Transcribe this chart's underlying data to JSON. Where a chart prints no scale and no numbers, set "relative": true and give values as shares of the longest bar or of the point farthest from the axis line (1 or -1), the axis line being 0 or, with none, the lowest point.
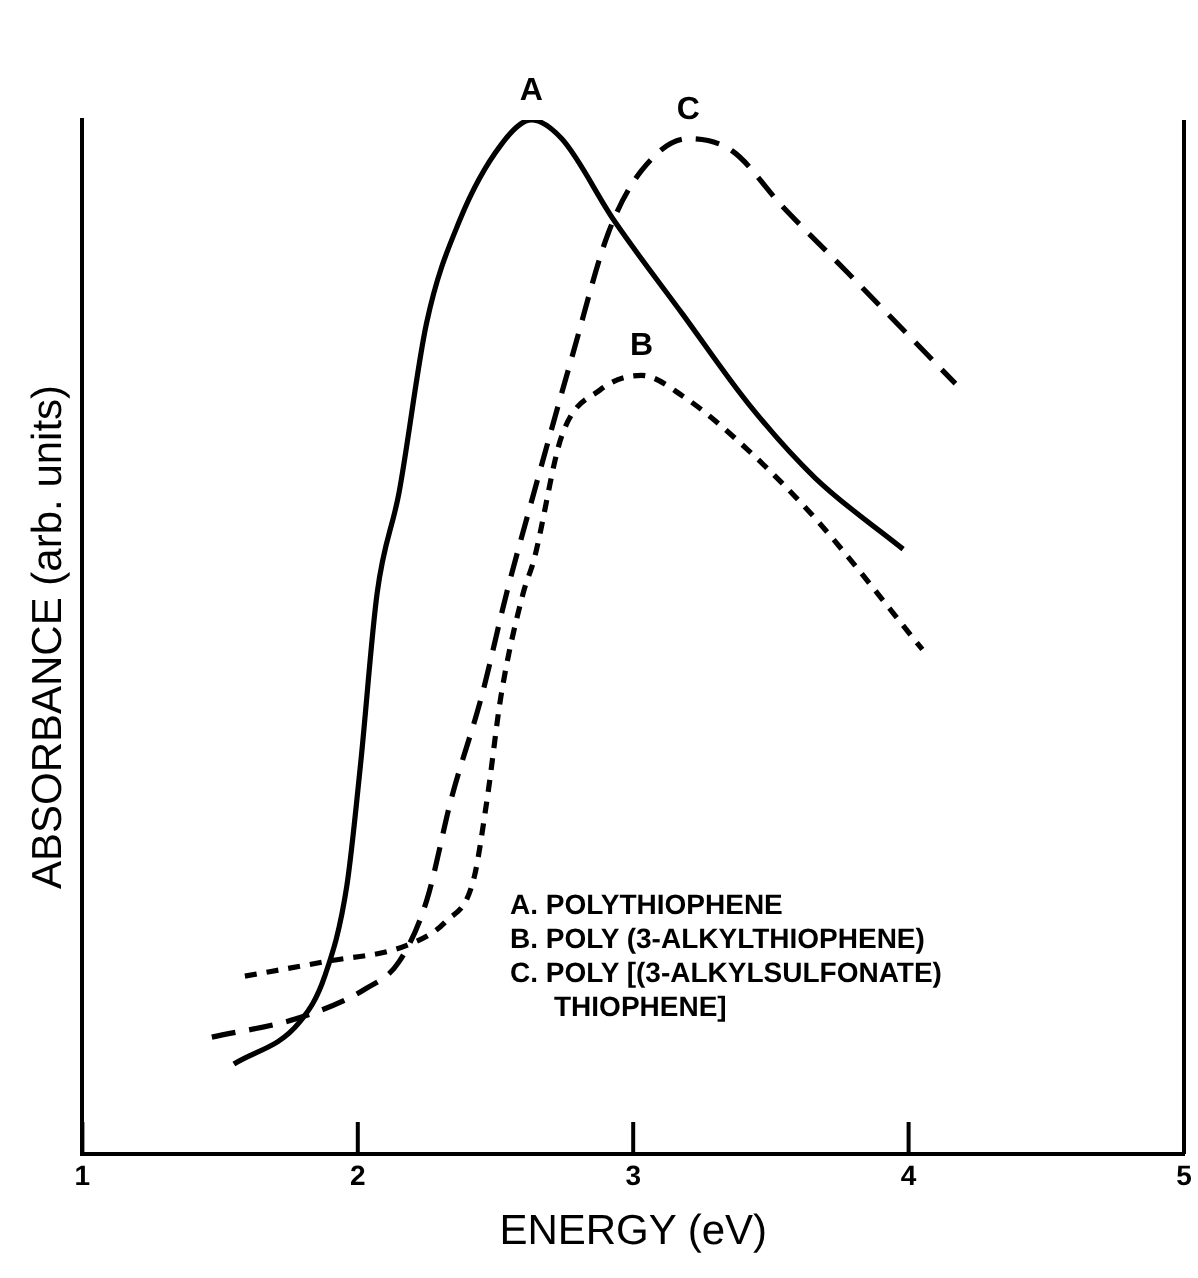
{
  "chart_data": {
    "type": "line",
    "xlabel": "ENERGY (eV)",
    "ylabel": "ABSORBANCE (arb. units)",
    "relative": true,
    "xlim": [
      1,
      5
    ],
    "xticks": [
      1,
      2,
      3,
      4,
      5
    ],
    "series": [
      {
        "name": "A",
        "color": "#000000",
        "line_style": "solid",
        "x": [
          1.55,
          1.79,
          1.88,
          1.96,
          2.01,
          2.07,
          2.15,
          2.25,
          2.37,
          2.52,
          2.63,
          2.74,
          2.93,
          3.18,
          3.42,
          3.66,
          3.98
        ],
        "values": [
          0.087,
          0.128,
          0.172,
          0.259,
          0.377,
          0.542,
          0.64,
          0.804,
          0.903,
          0.976,
          1.0,
          0.982,
          0.903,
          0.812,
          0.725,
          0.654,
          0.585
        ]
      },
      {
        "name": "B",
        "color": "#000000",
        "line_style": "dotted",
        "x": [
          1.59,
          1.88,
          2.18,
          2.32,
          2.42,
          2.47,
          2.52,
          2.6,
          2.64,
          2.74,
          2.88,
          3.03,
          3.18,
          3.42,
          3.66,
          4.05
        ],
        "values": [
          0.172,
          0.186,
          0.202,
          0.225,
          0.265,
          0.344,
          0.443,
          0.542,
          0.575,
          0.694,
          0.739,
          0.753,
          0.733,
          0.68,
          0.615,
          0.488
        ]
      },
      {
        "name": "C",
        "color": "#000000",
        "line_style": "dashed",
        "x": [
          1.47,
          1.79,
          2.03,
          2.15,
          2.25,
          2.34,
          2.45,
          2.54,
          2.64,
          2.78,
          2.91,
          3.03,
          3.2,
          3.36,
          3.54,
          3.78,
          4.17
        ],
        "values": [
          0.113,
          0.132,
          0.16,
          0.186,
          0.245,
          0.344,
          0.443,
          0.542,
          0.64,
          0.773,
          0.891,
          0.951,
          0.982,
          0.97,
          0.917,
          0.852,
          0.745
        ]
      }
    ],
    "annotations": [
      "A. POLYTHIOPHENE",
      "B. POLY (3-ALKYLTHIOPHENE)",
      "C. POLY [(3-ALKYLSULFONATE) THIOPHENE]"
    ]
  }
}
